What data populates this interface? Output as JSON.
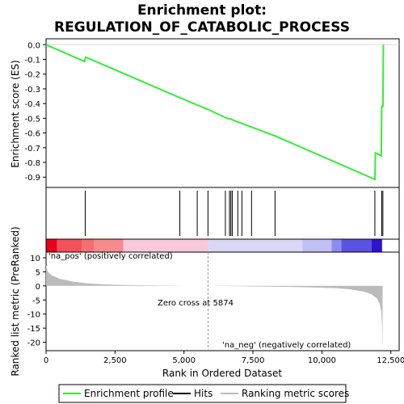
{
  "chart_data": {
    "type": "line",
    "title_line1": "Enrichment plot:",
    "title_line2": "REGULATION_OF_CATABOLIC_PROCESS",
    "xlabel": "Rank in Ordered Dataset",
    "ylabel_top": "Enrichment score (ES)",
    "ylabel_bottom": "Ranked list metric (PreRanked)",
    "xlim": [
      0,
      12800
    ],
    "x_ticks": [
      0,
      2500,
      5000,
      7500,
      10000,
      12500
    ],
    "x_tick_labels": [
      "0",
      "2,500",
      "5,000",
      "7,500",
      "10,000",
      "12,500"
    ],
    "es_ylim": [
      -0.97,
      0.04
    ],
    "es_ticks": [
      0.0,
      -0.1,
      -0.2,
      -0.3,
      -0.4,
      -0.5,
      -0.6,
      -0.7,
      -0.8,
      -0.9
    ],
    "es_tick_labels": [
      "0.0",
      "-0.1",
      "-0.2",
      "-0.3",
      "-0.4",
      "-0.5",
      "-0.6",
      "-0.7",
      "-0.8",
      "-0.9"
    ],
    "metric_ylim": [
      -23,
      12
    ],
    "metric_ticks": [
      10,
      5,
      0,
      -5,
      -10,
      -15,
      -20
    ],
    "metric_tick_labels": [
      "10",
      "5",
      "0",
      "-5",
      "-10",
      "-15",
      "-20"
    ],
    "enrichment_profile": {
      "x": [
        0,
        1400,
        1420,
        1440,
        4850,
        5480,
        5870,
        6500,
        6650,
        6700,
        6750,
        6950,
        7100,
        7450,
        8300,
        11920,
        11940,
        12150,
        12170,
        12210,
        12230
      ],
      "y": [
        0.0,
        -0.115,
        -0.095,
        -0.085,
        -0.36,
        -0.41,
        -0.44,
        -0.495,
        -0.505,
        -0.505,
        -0.51,
        -0.525,
        -0.535,
        -0.56,
        -0.62,
        -0.915,
        -0.735,
        -0.755,
        -0.42,
        -0.42,
        0.0
      ]
    },
    "hits": [
      1420,
      4850,
      5480,
      5870,
      6500,
      6650,
      6700,
      6750,
      6950,
      7100,
      7450,
      8300,
      11920,
      12170,
      12210
    ],
    "zero_cross": 5874,
    "zero_cross_label": "Zero cross at 5874",
    "pos_label": "'na_pos' (positively correlated)",
    "neg_label": "'na_neg' (negatively correlated)",
    "metric_curve": {
      "x": [
        0,
        60,
        200,
        500,
        1000,
        1500,
        2000,
        2500,
        3000,
        4000,
        5000,
        5874,
        7000,
        8500,
        9500,
        10500,
        11000,
        11500,
        11800,
        12000,
        12100,
        12150,
        12180,
        12200
      ],
      "y": [
        7.5,
        5.0,
        3.8,
        2.5,
        1.5,
        0.9,
        0.6,
        0.4,
        0.3,
        0.15,
        0.05,
        0.0,
        -0.1,
        -0.3,
        -0.5,
        -0.8,
        -1.2,
        -2.0,
        -3.0,
        -4.5,
        -6.5,
        -9.0,
        -14.0,
        -22.5
      ]
    },
    "colors": {
      "profile": "#33ee33",
      "hits": "#000000",
      "metric_fill": "#bbbbbb",
      "pos_text": "#cc0000",
      "neg_text": "#0000cc",
      "zero_line": "#999999"
    },
    "heat_bar_segments": [
      {
        "x0": 0,
        "x1": 400,
        "color": "#e8001a"
      },
      {
        "x0": 400,
        "x1": 1300,
        "color": "#f4505a"
      },
      {
        "x0": 1300,
        "x1": 1750,
        "color": "#f56e72"
      },
      {
        "x0": 1750,
        "x1": 2800,
        "color": "#f78a8c"
      },
      {
        "x0": 2800,
        "x1": 5874,
        "color": "#f8c8dc"
      },
      {
        "x0": 5874,
        "x1": 9300,
        "color": "#d8d8f6"
      },
      {
        "x0": 9300,
        "x1": 10350,
        "color": "#c0c0f4"
      },
      {
        "x0": 10350,
        "x1": 10700,
        "color": "#8c8cee"
      },
      {
        "x0": 10700,
        "x1": 11800,
        "color": "#5a52e2"
      },
      {
        "x0": 11800,
        "x1": 12180,
        "color": "#2b14cc"
      }
    ]
  },
  "legend": {
    "items": [
      {
        "label": "Enrichment profile"
      },
      {
        "label": "Hits"
      },
      {
        "label": "Ranking metric scores"
      }
    ]
  }
}
